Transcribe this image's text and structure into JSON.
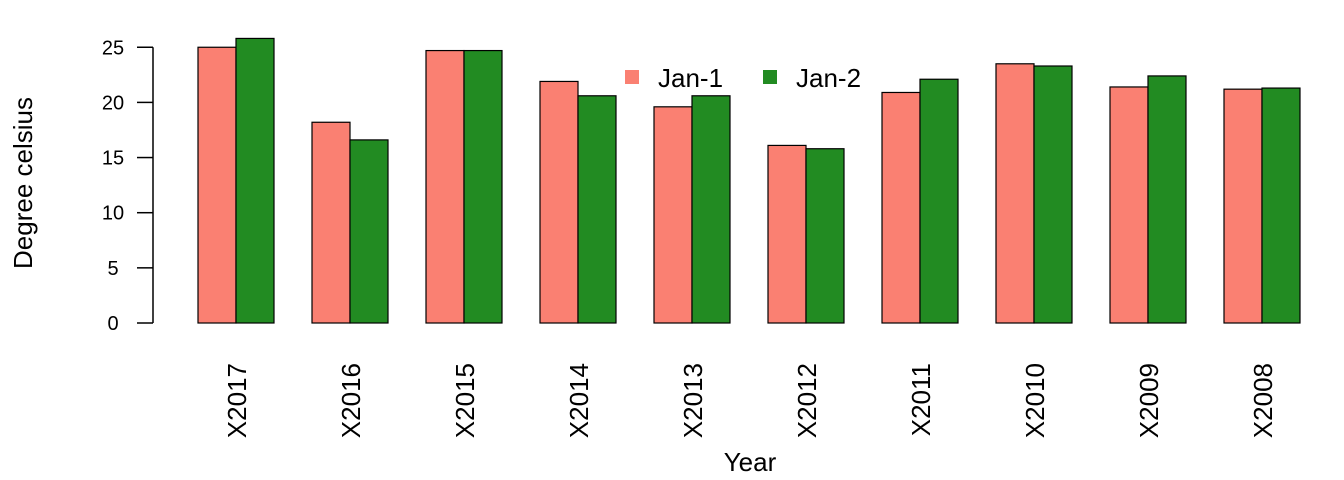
{
  "chart_data": {
    "type": "bar",
    "categories": [
      "X2017",
      "X2016",
      "X2015",
      "X2014",
      "X2013",
      "X2012",
      "X2011",
      "X2010",
      "X2009",
      "X2008"
    ],
    "series": [
      {
        "name": "Jan-1",
        "color": "#FA8072",
        "values": [
          25.0,
          18.2,
          24.7,
          21.9,
          19.6,
          16.1,
          20.9,
          23.5,
          21.4,
          21.2
        ]
      },
      {
        "name": "Jan-2",
        "color": "#228B22",
        "values": [
          25.8,
          16.6,
          24.7,
          20.6,
          20.6,
          15.8,
          22.1,
          23.3,
          22.4,
          21.3
        ]
      }
    ],
    "xlabel": "Year",
    "ylabel": "Degree celsius",
    "yticks": [
      "0",
      "5",
      "10",
      "15",
      "20",
      "25"
    ],
    "ylim": [
      0,
      26
    ],
    "legend": "top-center",
    "grid": false
  }
}
